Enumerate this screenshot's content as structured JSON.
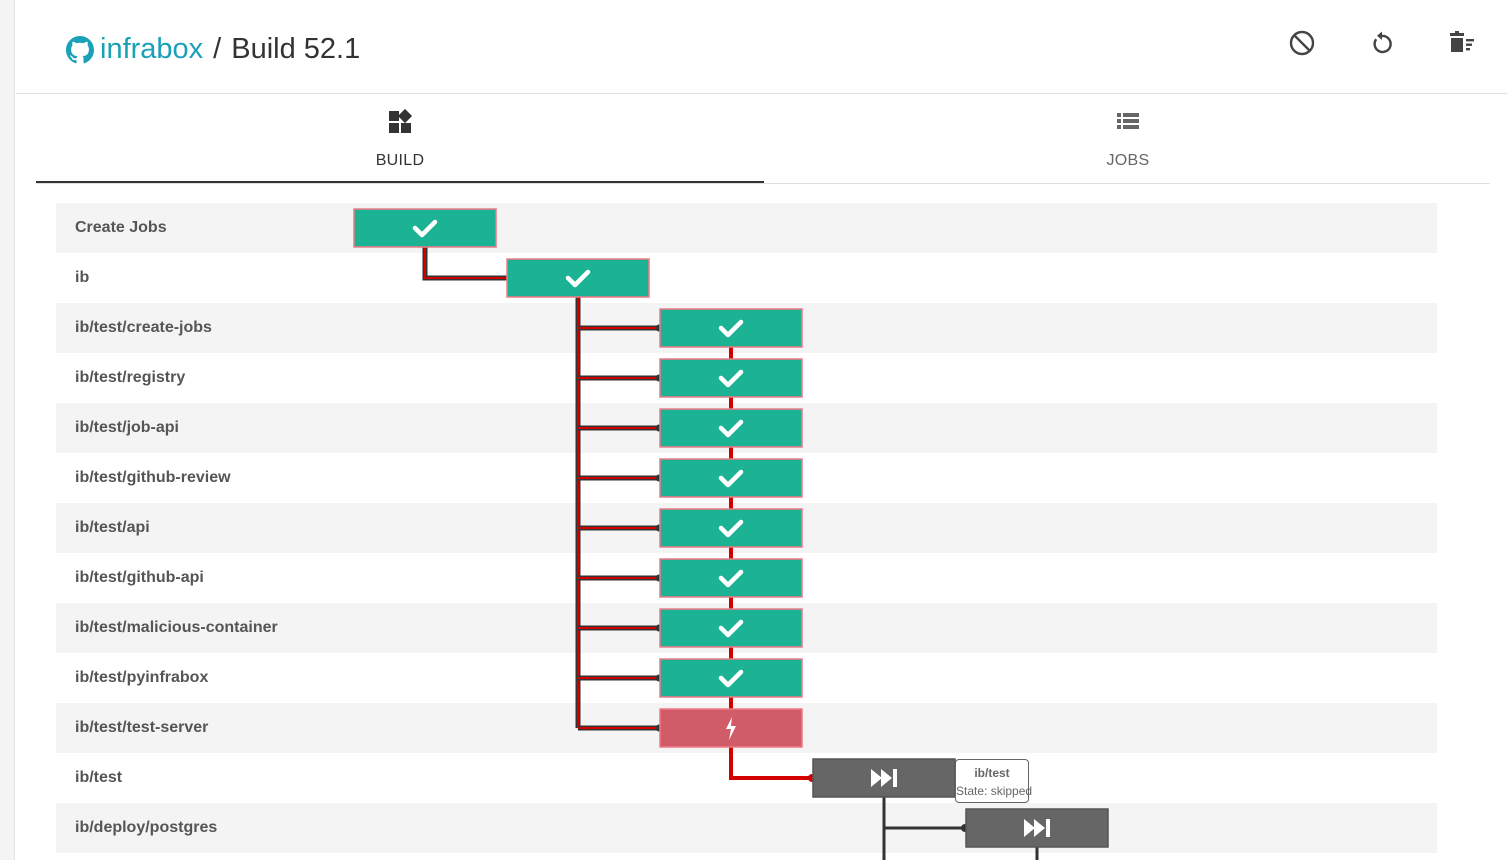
{
  "header": {
    "repo": "infrabox",
    "separator": "/",
    "build": "Build 52.1",
    "actions": [
      {
        "name": "abort-build-button",
        "icon": "block-icon"
      },
      {
        "name": "restart-build-button",
        "icon": "restart-icon"
      },
      {
        "name": "clear-cache-button",
        "icon": "delete-sweep-icon"
      }
    ]
  },
  "tabs": [
    {
      "label": "BUILD",
      "icon": "dashboard-icon",
      "active": true
    },
    {
      "label": "JOBS",
      "icon": "list-icon",
      "active": false
    }
  ],
  "jobs": [
    {
      "name": "Create Jobs",
      "state": "finished"
    },
    {
      "name": "ib",
      "state": "finished"
    },
    {
      "name": "ib/test/create-jobs",
      "state": "finished"
    },
    {
      "name": "ib/test/registry",
      "state": "finished"
    },
    {
      "name": "ib/test/job-api",
      "state": "finished"
    },
    {
      "name": "ib/test/github-review",
      "state": "finished"
    },
    {
      "name": "ib/test/api",
      "state": "finished"
    },
    {
      "name": "ib/test/github-api",
      "state": "finished"
    },
    {
      "name": "ib/test/malicious-container",
      "state": "finished"
    },
    {
      "name": "ib/test/pyinfrabox",
      "state": "finished"
    },
    {
      "name": "ib/test/test-server",
      "state": "failure"
    },
    {
      "name": "ib/test",
      "state": "skipped"
    },
    {
      "name": "ib/deploy/postgres",
      "state": "skipped"
    }
  ],
  "tooltip": {
    "job": "ib/test",
    "state": "State: skipped"
  },
  "colors": {
    "finished": "#1bb394",
    "failure": "#d05c67",
    "skipped": "#666666",
    "critical_path": "#d30000",
    "edge": "#333333",
    "accent": "#1aa1b8"
  }
}
